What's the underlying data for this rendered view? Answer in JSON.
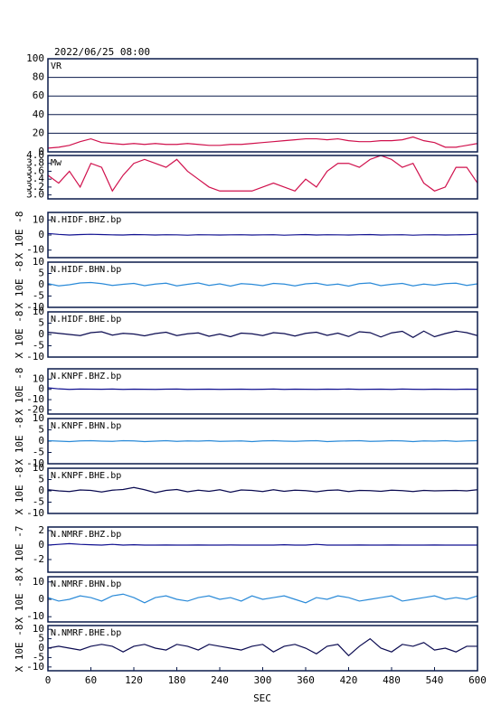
{
  "chart_data": {
    "type": "line",
    "title": "2022/06/25 08:00",
    "xlabel": "SEC",
    "xlim": [
      0,
      600
    ],
    "xticks": [
      0,
      60,
      120,
      180,
      240,
      300,
      360,
      420,
      480,
      540,
      600
    ],
    "x": [
      0,
      15,
      30,
      45,
      60,
      75,
      90,
      105,
      120,
      135,
      150,
      165,
      180,
      195,
      210,
      225,
      240,
      255,
      270,
      285,
      300,
      315,
      330,
      345,
      360,
      375,
      390,
      405,
      420,
      435,
      450,
      465,
      480,
      495,
      510,
      525,
      540,
      555,
      570,
      585,
      600
    ],
    "panels": [
      {
        "label": "VR",
        "ylim": [
          0,
          100
        ],
        "yticks": [
          0,
          20,
          40,
          60,
          80,
          100
        ],
        "grid": true,
        "series": [
          {
            "color": "#d0104c",
            "values": [
              4,
              5,
              7,
              11,
              14,
              10,
              9,
              8,
              9,
              8,
              9,
              8,
              8,
              9,
              8,
              7,
              7,
              8,
              8,
              9,
              10,
              11,
              12,
              13,
              14,
              14,
              13,
              14,
              12,
              11,
              11,
              12,
              12,
              13,
              16,
              12,
              10,
              5,
              5,
              7,
              9
            ]
          }
        ]
      },
      {
        "label": "Mw",
        "ylim": [
          2.9,
          4.0
        ],
        "yticks": [
          {
            "value": 3,
            "label": "3.0"
          },
          3.2,
          3.4,
          3.6,
          3.8,
          {
            "value": 4,
            "label": "4.0"
          }
        ],
        "grid": false,
        "series": [
          {
            "color": "#d0104c",
            "values": [
              3.5,
              3.3,
              3.6,
              3.2,
              3.8,
              3.7,
              3.1,
              3.5,
              3.8,
              3.9,
              3.8,
              3.7,
              3.9,
              3.6,
              3.4,
              3.2,
              3.1,
              3.1,
              3.1,
              3.1,
              3.2,
              3.3,
              3.2,
              3.1,
              3.4,
              3.2,
              3.6,
              3.8,
              3.8,
              3.7,
              3.9,
              4.0,
              3.9,
              3.7,
              3.8,
              3.3,
              3.1,
              3.2,
              3.7,
              3.7,
              3.3
            ]
          }
        ]
      },
      {
        "label": "N.HIDF.BHZ.bp",
        "ylabel": "X 10E -8",
        "ylim": [
          -15,
          15
        ],
        "yticks": [
          -10,
          0,
          10
        ],
        "grid": false,
        "series": [
          {
            "color": "#101090",
            "values": [
              1,
              0.4,
              0,
              0.3,
              0.5,
              0.3,
              0.1,
              0,
              0.3,
              0.2,
              0,
              0.2,
              0.1,
              -0.1,
              0.2,
              0.1,
              0,
              0.1,
              0.2,
              0,
              0.1,
              0.2,
              -0.1,
              0.1,
              0.3,
              0,
              0.2,
              0.1,
              0,
              0.2,
              0.3,
              0,
              0.1,
              0.2,
              -0.1,
              0.1,
              0.2,
              0,
              0.1,
              0.2,
              0.5
            ]
          }
        ]
      },
      {
        "label": "N.HIDF.BHN.bp",
        "ylabel": "X 10E -8",
        "ylim": [
          -10,
          10
        ],
        "yticks": [
          -10,
          -5,
          0,
          5,
          10
        ],
        "grid": false,
        "series": [
          {
            "color": "#2a8ad8",
            "values": [
              0.5,
              -0.5,
              0,
              0.8,
              1,
              0.5,
              -0.3,
              0.2,
              0.6,
              -0.4,
              0.3,
              0.7,
              -0.5,
              0.2,
              0.8,
              -0.3,
              0.4,
              -0.6,
              0.5,
              0.2,
              -0.4,
              0.6,
              0.3,
              -0.5,
              0.4,
              0.7,
              -0.2,
              0.3,
              -0.6,
              0.5,
              0.8,
              -0.4,
              0.2,
              0.6,
              -0.5,
              0.3,
              -0.2,
              0.5,
              0.7,
              -0.3,
              0.4
            ]
          }
        ]
      },
      {
        "label": "N.HIDF.BHE.bp",
        "ylabel": "X 10E -8",
        "ylim": [
          -10,
          10
        ],
        "yticks": [
          -10,
          -5,
          0,
          5,
          10
        ],
        "grid": false,
        "series": [
          {
            "color": "#0a0a50",
            "values": [
              1,
              0.5,
              0,
              -0.5,
              0.8,
              1.2,
              -0.3,
              0.5,
              0.2,
              -0.6,
              0.4,
              1,
              -0.5,
              0.3,
              0.7,
              -0.8,
              0.2,
              -1,
              0.6,
              0.3,
              -0.5,
              0.8,
              0.4,
              -0.7,
              0.5,
              1,
              -0.4,
              0.6,
              -0.9,
              1.2,
              0.8,
              -1.1,
              0.7,
              1.4,
              -1.3,
              1.5,
              -1,
              0.4,
              1.5,
              0.8,
              -0.5
            ]
          }
        ]
      },
      {
        "label": "N.KNPF.BHZ.bp",
        "ylabel": "X 10E -8",
        "ylim": [
          -24,
          20
        ],
        "yticks": [
          -20,
          -10,
          0,
          10
        ],
        "grid": false,
        "series": [
          {
            "color": "#101090",
            "values": [
              1.5,
              0.5,
              0,
              0.3,
              0.2,
              0.1,
              0.3,
              0,
              0.2,
              0.1,
              0,
              0.2,
              0.3,
              0,
              0.1,
              0.2,
              0,
              0.1,
              0.2,
              0,
              0.1,
              0.3,
              0,
              0.2,
              0.1,
              0,
              0.2,
              0.1,
              0.3,
              0,
              0.1,
              0.2,
              0,
              0.3,
              0.1,
              0,
              0.2,
              0.1,
              0,
              0.2,
              0.1
            ]
          }
        ]
      },
      {
        "label": "N.KNPF.BHN.bp",
        "ylabel": "X 10E -8",
        "ylim": [
          -10,
          10
        ],
        "yticks": [
          -10,
          -5,
          0,
          5,
          10
        ],
        "grid": false,
        "series": [
          {
            "color": "#2a8ad8",
            "values": [
              0.2,
              0,
              -0.2,
              0.1,
              0.2,
              0,
              -0.1,
              0.2,
              0.1,
              -0.2,
              0,
              0.2,
              -0.1,
              0.1,
              0,
              0.2,
              -0.1,
              0,
              0.1,
              -0.2,
              0.1,
              0.2,
              0,
              -0.1,
              0.1,
              0.2,
              -0.2,
              0,
              0.1,
              0.2,
              -0.1,
              0,
              0.2,
              0.1,
              -0.2,
              0.1,
              0,
              0.2,
              -0.1,
              0.1,
              0.2
            ]
          }
        ]
      },
      {
        "label": "N.KNPF.BHE.bp",
        "ylabel": "X 10E -8",
        "ylim": [
          -10,
          10
        ],
        "yticks": [
          -10,
          -5,
          0,
          5,
          10
        ],
        "grid": false,
        "series": [
          {
            "color": "#0a0a50",
            "values": [
              0.5,
              0,
              -0.3,
              0.4,
              0.2,
              -0.5,
              0.3,
              0.6,
              1.5,
              0.5,
              -0.8,
              0.2,
              0.6,
              -0.4,
              0.3,
              -0.2,
              0.5,
              -0.6,
              0.4,
              0.2,
              -0.3,
              0.5,
              -0.2,
              0.3,
              0.1,
              -0.4,
              0.2,
              0.4,
              -0.3,
              0.2,
              0.1,
              -0.2,
              0.3,
              0.1,
              -0.3,
              0.2,
              0,
              0.1,
              0.2,
              0,
              0.5
            ]
          }
        ]
      },
      {
        "label": "N.NMRF.BHZ.bp",
        "ylabel": "X 10E -7",
        "ylim": [
          -3.75,
          2.5
        ],
        "yticks": [
          -2,
          0,
          2
        ],
        "grid": false,
        "series": [
          {
            "color": "#101090",
            "values": [
              0,
              0.1,
              0.2,
              0.1,
              0.05,
              0,
              0.1,
              0,
              0.05,
              0,
              0,
              0.02,
              0,
              0,
              0.02,
              0,
              0,
              0.02,
              0,
              0,
              0,
              0,
              0.05,
              0,
              0,
              0.1,
              0,
              0,
              0,
              0.02,
              0,
              0,
              0.02,
              0,
              0,
              0,
              0.02,
              0,
              0,
              0,
              0
            ]
          }
        ]
      },
      {
        "label": "N.NMRF.BHN.bp",
        "ylabel": "X 10E -8",
        "ylim": [
          -13,
          13
        ],
        "yticks": [
          -10,
          0,
          10
        ],
        "grid": false,
        "series": [
          {
            "color": "#2a8ad8",
            "values": [
              1,
              -1,
              0,
              2,
              1,
              -1,
              2,
              3,
              1,
              -2,
              1,
              2,
              0,
              -1,
              1,
              2,
              0,
              1,
              -1,
              2,
              0,
              1,
              2,
              0,
              -2,
              1,
              0,
              2,
              1,
              -1,
              0,
              1,
              2,
              -1,
              0,
              1,
              2,
              0,
              1,
              0,
              2
            ]
          }
        ]
      },
      {
        "label": "N.NMRF.BHE.bp",
        "ylabel": "X 10E -8",
        "ylim": [
          -12,
          12
        ],
        "yticks": [
          -10,
          -5,
          0,
          5,
          10
        ],
        "grid": false,
        "series": [
          {
            "color": "#0a0a50",
            "values": [
              0,
              1,
              0,
              -1,
              1,
              2,
              1,
              -2,
              1,
              2,
              0,
              -1,
              2,
              1,
              -1,
              2,
              1,
              0,
              -1,
              1,
              2,
              -2,
              1,
              2,
              0,
              -3,
              1,
              2,
              -4,
              1,
              5,
              0,
              -2,
              2,
              1,
              3,
              -1,
              0,
              -2,
              1,
              1
            ]
          }
        ]
      }
    ]
  }
}
